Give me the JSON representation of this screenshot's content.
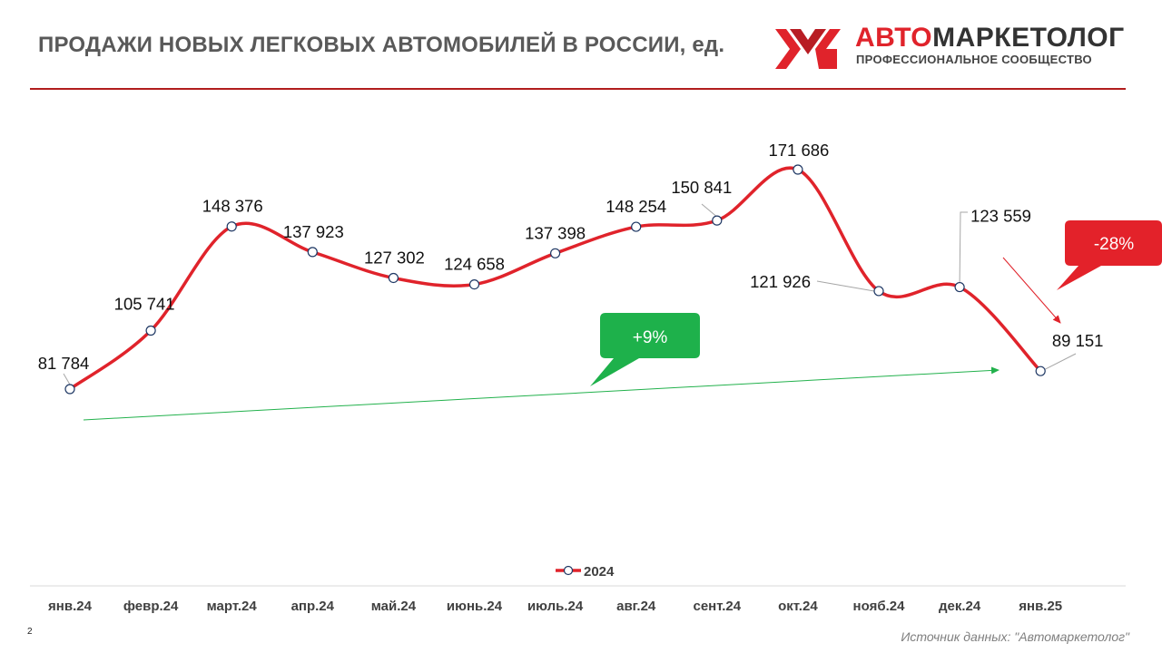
{
  "title": "ПРОДАЖИ НОВЫХ ЛЕГКОВЫХ АВТОМОБИЛЕЙ В РОССИИ, ед.",
  "logo": {
    "name_part1": "АВТО",
    "name_part2": "МАРКЕТОЛОГ",
    "subtitle": "ПРОФЕССИОНАЛЬНОЕ СООБЩЕСТВО",
    "icon": "am-logo-icon",
    "colors": {
      "red": "#e0232b",
      "dark": "#333333"
    }
  },
  "page_number": "2",
  "source": "Источник данных: \"Автомаркетолог\"",
  "colors": {
    "series": "#e0232b",
    "trend_up": "#22b14c",
    "trend_down": "#e0232b",
    "callout_up": "#1eb14b",
    "callout_down": "#e3222a",
    "title_rule": "#b11d1d"
  },
  "chart_data": {
    "type": "line",
    "title": "ПРОДАЖИ НОВЫХ ЛЕГКОВЫХ АВТОМОБИЛЕЙ В РОССИИ, ед.",
    "categories": [
      "янв.24",
      "февр.24",
      "март.24",
      "апр.24",
      "май.24",
      "июнь.24",
      "июль.24",
      "авг.24",
      "сент.24",
      "окт.24",
      "нояб.24",
      "дек.24",
      "янв.25"
    ],
    "series": [
      {
        "name": "2024",
        "values": [
          81784,
          105741,
          148376,
          137923,
          127302,
          124658,
          137398,
          148254,
          150841,
          171686,
          121926,
          123559,
          89151
        ],
        "labels": [
          "81 784",
          "105 741",
          "148 376",
          "137 923",
          "127 302",
          "124 658",
          "137 398",
          "148 254",
          "150 841",
          "171 686",
          "121 926",
          "123 559",
          "89 151"
        ]
      }
    ],
    "annotations": [
      {
        "text": "+9%",
        "kind": "trend-up"
      },
      {
        "text": "-28%",
        "kind": "trend-down"
      }
    ],
    "legend": "bottom",
    "grid": false,
    "smooth": true
  }
}
